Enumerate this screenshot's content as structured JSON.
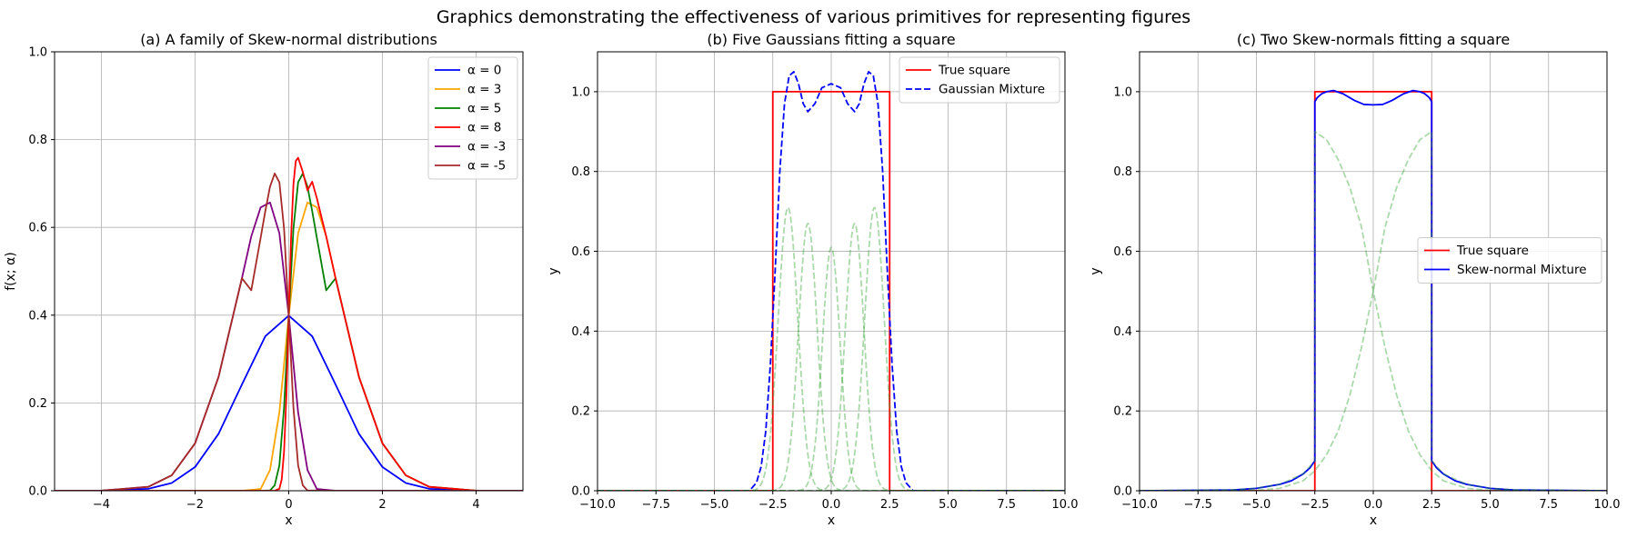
{
  "suptitle": "Graphics demonstrating the effectiveness of various primitives for representing figures",
  "chart_data": [
    {
      "type": "line",
      "title": "(a) A family of Skew-normal distributions",
      "xlabel": "x",
      "ylabel": "f(x; α)",
      "xlim": [
        -5,
        5
      ],
      "ylim": [
        0,
        1
      ],
      "xticks": [
        -4,
        -2,
        0,
        2,
        4
      ],
      "xtick_labels": [
        "−4",
        "−2",
        "0",
        "2",
        "4"
      ],
      "yticks": [
        0,
        0.2,
        0.4,
        0.6,
        0.8,
        1.0
      ],
      "ytick_labels": [
        "0.0",
        "0.2",
        "0.4",
        "0.6",
        "0.8",
        "1.0"
      ],
      "grid": true,
      "legend_position": "top-right",
      "series": [
        {
          "name": "α = 0",
          "alpha": 0,
          "color": "#0000ff",
          "style": "solid",
          "x": [
            -5,
            -4,
            -3,
            -2.5,
            -2,
            -1.5,
            -1,
            -0.5,
            0,
            0.5,
            1,
            1.5,
            2,
            2.5,
            3,
            4,
            5
          ],
          "y": [
            0.0,
            0.0001,
            0.0044,
            0.0175,
            0.054,
            0.1295,
            0.242,
            0.3521,
            0.3989,
            0.3521,
            0.242,
            0.1295,
            0.054,
            0.0175,
            0.0044,
            0.0001,
            0.0
          ]
        },
        {
          "name": "α = 3",
          "alpha": 3,
          "color": "#ffa500",
          "style": "solid",
          "x": [
            -5,
            -1,
            -0.6,
            -0.4,
            -0.2,
            0,
            0.2,
            0.4,
            0.6,
            0.8,
            1,
            1.5,
            2,
            2.5,
            3,
            4,
            5
          ],
          "y": [
            0.0,
            0.0,
            0.004,
            0.0473,
            0.1788,
            0.3989,
            0.5866,
            0.6568,
            0.6456,
            0.5795,
            0.484,
            0.259,
            0.108,
            0.035,
            0.0089,
            0.0003,
            0.0
          ]
        },
        {
          "name": "α = 5",
          "alpha": 5,
          "color": "#008000",
          "style": "solid",
          "x": [
            -5,
            -1,
            -0.6,
            -0.4,
            -0.3,
            -0.2,
            -0.1,
            0,
            0.1,
            0.2,
            0.3,
            0.4,
            0.5,
            0.6,
            0.8,
            1,
            1.5,
            2,
            2.5,
            3,
            4,
            5
          ],
          "y": [
            0.0,
            0.0,
            0.0,
            0.0006,
            0.0124,
            0.0578,
            0.1896,
            0.3989,
            0.5969,
            0.7027,
            0.7226,
            0.6926,
            0.6373,
            0.5764,
            0.4566,
            0.484,
            0.259,
            0.108,
            0.035,
            0.0089,
            0.0003,
            0.0
          ]
        },
        {
          "name": "α = 8",
          "alpha": 8,
          "color": "#ff0000",
          "style": "solid",
          "x": [
            -5,
            -1,
            -0.3,
            -0.2,
            -0.15,
            -0.1,
            -0.05,
            0,
            0.05,
            0.1,
            0.15,
            0.2,
            0.3,
            0.4,
            0.5,
            0.6,
            0.8,
            1,
            1.5,
            2,
            2.5,
            3,
            4,
            5
          ],
          "y": [
            0.0,
            0.0,
            0.0,
            0.0044,
            0.0258,
            0.0898,
            0.2178,
            0.3989,
            0.5774,
            0.6981,
            0.7512,
            0.7587,
            0.7263,
            0.6841,
            0.7041,
            0.6664,
            0.5793,
            0.484,
            0.259,
            0.108,
            0.035,
            0.0089,
            0.0003,
            0.0
          ]
        },
        {
          "name": "α = -3",
          "alpha": -3,
          "color": "#800080",
          "style": "solid",
          "x": [
            -5,
            -4,
            -3,
            -2.5,
            -2,
            -1.5,
            -1,
            -0.8,
            -0.6,
            -0.4,
            -0.2,
            0,
            0.2,
            0.4,
            0.6,
            1,
            5
          ],
          "y": [
            0.0,
            0.0003,
            0.0089,
            0.035,
            0.108,
            0.259,
            0.484,
            0.5795,
            0.6456,
            0.6568,
            0.5866,
            0.3989,
            0.1788,
            0.0473,
            0.004,
            0.0,
            0.0
          ]
        },
        {
          "name": "α = -5",
          "alpha": -5,
          "color": "#a52a2a",
          "style": "solid",
          "x": [
            -5,
            -4,
            -3,
            -2.5,
            -2,
            -1.5,
            -1,
            -0.8,
            -0.6,
            -0.5,
            -0.4,
            -0.3,
            -0.2,
            -0.1,
            0,
            0.1,
            0.2,
            0.3,
            0.4,
            1,
            5
          ],
          "y": [
            0.0,
            0.0003,
            0.0089,
            0.035,
            0.108,
            0.259,
            0.484,
            0.4566,
            0.5764,
            0.6373,
            0.6926,
            0.7226,
            0.7027,
            0.5969,
            0.3989,
            0.1896,
            0.0578,
            0.0124,
            0.0006,
            0.0,
            0.0
          ]
        }
      ]
    },
    {
      "type": "line",
      "title": "(b) Five Gaussians fitting a square",
      "xlabel": "x",
      "ylabel": "y",
      "xlim": [
        -10,
        10
      ],
      "ylim": [
        0,
        1.1
      ],
      "xticks": [
        -10,
        -7.5,
        -5,
        -2.5,
        0,
        2.5,
        5,
        7.5,
        10
      ],
      "xtick_labels": [
        "−10.0",
        "−7.5",
        "−5.0",
        "−2.5",
        "0.0",
        "2.5",
        "5.0",
        "7.5",
        "10.0"
      ],
      "yticks": [
        0,
        0.2,
        0.4,
        0.6,
        0.8,
        1.0
      ],
      "ytick_labels": [
        "0.0",
        "0.2",
        "0.4",
        "0.6",
        "0.8",
        "1.0"
      ],
      "grid": true,
      "legend_position": "top-right",
      "series": [
        {
          "name": "True square",
          "color": "#ff0000",
          "style": "solid",
          "x": [
            -10,
            -2.5,
            -2.5,
            2.5,
            2.5,
            10
          ],
          "y": [
            0,
            0,
            1,
            1,
            0,
            0
          ]
        },
        {
          "name": "Gaussian Mixture",
          "color": "#0000ff",
          "style": "dashed",
          "x": [
            -10,
            -3.5,
            -3.2,
            -3.0,
            -2.8,
            -2.6,
            -2.4,
            -2.2,
            -2.0,
            -1.8,
            -1.6,
            -1.4,
            -1.2,
            -1.0,
            -0.7,
            -0.4,
            0,
            0.4,
            0.7,
            1.0,
            1.2,
            1.4,
            1.6,
            1.8,
            2.0,
            2.2,
            2.4,
            2.6,
            2.8,
            3.0,
            3.2,
            3.5,
            10
          ],
          "y": [
            0,
            0.0,
            0.02,
            0.06,
            0.15,
            0.32,
            0.55,
            0.8,
            0.97,
            1.04,
            1.05,
            1.02,
            0.97,
            0.95,
            0.97,
            1.01,
            1.02,
            1.01,
            0.97,
            0.95,
            0.97,
            1.02,
            1.05,
            1.04,
            0.97,
            0.8,
            0.55,
            0.32,
            0.15,
            0.06,
            0.02,
            0.0,
            0
          ]
        },
        {
          "name": "",
          "role": "component",
          "color": "#2ca02c",
          "opacity": 0.4,
          "style": "dashed",
          "mu": -1.85,
          "sigma": 0.42,
          "amp": 0.71
        },
        {
          "name": "",
          "role": "component",
          "color": "#2ca02c",
          "opacity": 0.4,
          "style": "dashed",
          "mu": -1.0,
          "sigma": 0.4,
          "amp": 0.67
        },
        {
          "name": "",
          "role": "component",
          "color": "#2ca02c",
          "opacity": 0.4,
          "style": "dashed",
          "mu": 0.0,
          "sigma": 0.38,
          "amp": 0.61
        },
        {
          "name": "",
          "role": "component",
          "color": "#2ca02c",
          "opacity": 0.4,
          "style": "dashed",
          "mu": 1.0,
          "sigma": 0.4,
          "amp": 0.67
        },
        {
          "name": "",
          "role": "component",
          "color": "#2ca02c",
          "opacity": 0.4,
          "style": "dashed",
          "mu": 1.85,
          "sigma": 0.42,
          "amp": 0.71
        }
      ]
    },
    {
      "type": "line",
      "title": "(c) Two Skew-normals fitting a square",
      "xlabel": "x",
      "ylabel": "y",
      "xlim": [
        -10,
        10
      ],
      "ylim": [
        0,
        1.1
      ],
      "xticks": [
        -10,
        -7.5,
        -5,
        -2.5,
        0,
        2.5,
        5,
        7.5,
        10
      ],
      "xtick_labels": [
        "−10.0",
        "−7.5",
        "−5.0",
        "−2.5",
        "0.0",
        "2.5",
        "5.0",
        "7.5",
        "10.0"
      ],
      "yticks": [
        0,
        0.2,
        0.4,
        0.6,
        0.8,
        1.0
      ],
      "ytick_labels": [
        "0.0",
        "0.2",
        "0.4",
        "0.6",
        "0.8",
        "1.0"
      ],
      "grid": true,
      "legend_position": "center-right",
      "series": [
        {
          "name": "True square",
          "color": "#ff0000",
          "style": "solid",
          "x": [
            -10,
            -2.5,
            -2.5,
            2.5,
            2.5,
            10
          ],
          "y": [
            0,
            0,
            1,
            1,
            0,
            0
          ]
        },
        {
          "name": "Skew-normal Mixture",
          "color": "#0000ff",
          "style": "solid",
          "x": [
            -10,
            -6,
            -5,
            -4,
            -3.5,
            -3,
            -2.7,
            -2.5,
            -2.5,
            -2.4,
            -2.2,
            -2.0,
            -1.7,
            -1.3,
            -0.8,
            -0.4,
            0,
            0.4,
            0.8,
            1.3,
            1.7,
            2.0,
            2.2,
            2.4,
            2.5,
            2.5,
            2.7,
            3,
            3.5,
            4,
            5,
            6,
            10
          ],
          "y": [
            0,
            0.002,
            0.006,
            0.016,
            0.025,
            0.042,
            0.058,
            0.075,
            0.975,
            0.985,
            0.995,
            1.0,
            1.003,
            0.995,
            0.978,
            0.968,
            0.967,
            0.968,
            0.978,
            0.995,
            1.003,
            1.0,
            0.995,
            0.985,
            0.975,
            0.075,
            0.058,
            0.042,
            0.025,
            0.016,
            0.006,
            0.002,
            0
          ]
        },
        {
          "name": "",
          "role": "component",
          "color": "#2ca02c",
          "opacity": 0.4,
          "style": "dashed",
          "x": [
            -10,
            -6,
            -5,
            -4,
            -3,
            -2.5,
            -2.5,
            -2,
            -1.5,
            -1,
            -0.5,
            0,
            0.5,
            1,
            1.5,
            2,
            2.5,
            3,
            4,
            5,
            10
          ],
          "y": [
            0,
            0.002,
            0.006,
            0.016,
            0.042,
            0.075,
            0.9,
            0.88,
            0.83,
            0.76,
            0.66,
            0.5,
            0.36,
            0.24,
            0.15,
            0.09,
            0.05,
            0.025,
            0.006,
            0.001,
            0
          ]
        },
        {
          "name": "",
          "role": "component",
          "color": "#2ca02c",
          "opacity": 0.4,
          "style": "dashed",
          "x": [
            -10,
            -5,
            -4,
            -3,
            -2.5,
            -2,
            -1.5,
            -1,
            -0.5,
            0,
            0.5,
            1,
            1.5,
            2,
            2.5,
            2.5,
            3,
            4,
            5,
            6,
            10
          ],
          "y": [
            0,
            0.001,
            0.006,
            0.025,
            0.05,
            0.09,
            0.15,
            0.24,
            0.36,
            0.5,
            0.66,
            0.76,
            0.83,
            0.88,
            0.9,
            0.075,
            0.042,
            0.016,
            0.006,
            0.002,
            0
          ]
        }
      ]
    }
  ]
}
